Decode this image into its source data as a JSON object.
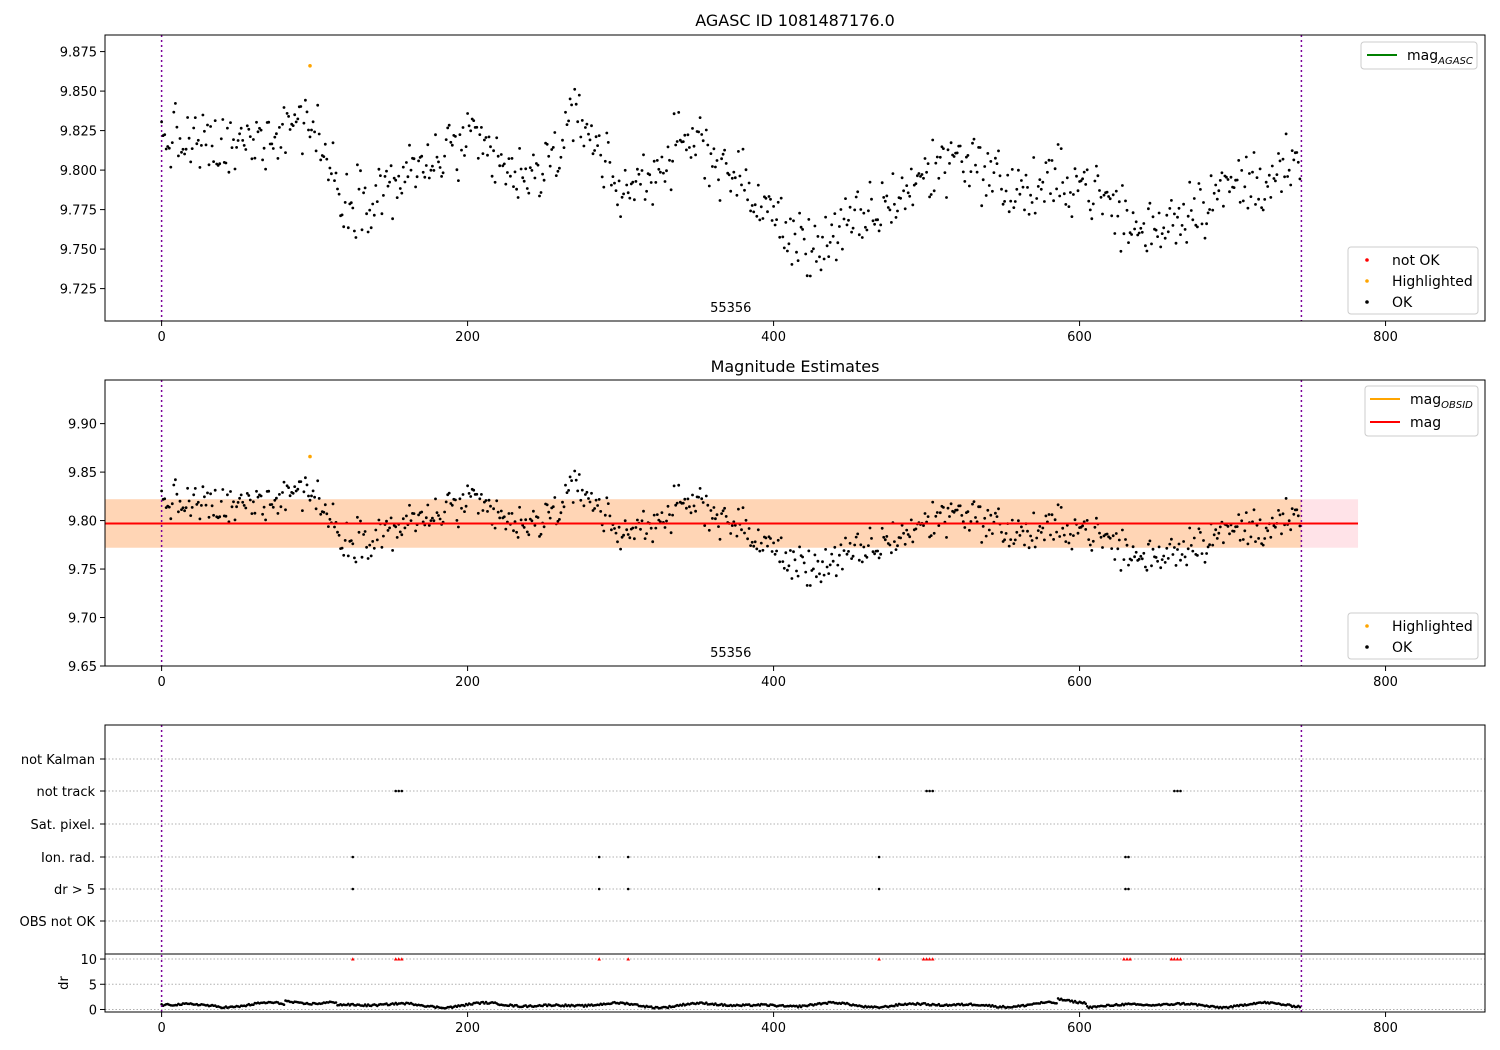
{
  "chart_data": [
    {
      "type": "scatter",
      "title": "AGASC ID 1081487176.0",
      "xlim": [
        -37,
        865
      ],
      "ylim": [
        9.7045,
        9.8855
      ],
      "xticks": [
        0,
        200,
        400,
        600,
        800
      ],
      "yticks": [
        9.725,
        9.75,
        9.775,
        9.8,
        9.825,
        9.85,
        9.875
      ],
      "ytick_labels": [
        "9.725",
        "9.750",
        "9.775",
        "9.800",
        "9.825",
        "9.850",
        "9.875"
      ],
      "obsid_boundaries": [
        0,
        745
      ],
      "annotation": {
        "text": "55356",
        "x": 372
      },
      "legend_lines": [
        {
          "label": "mag",
          "subscript": "AGASC",
          "color": "#008000"
        }
      ],
      "legend_points": [
        {
          "label": "not OK",
          "color": "#ff0000"
        },
        {
          "label": "Highlighted",
          "color": "#ffa500"
        },
        {
          "label": "OK",
          "color": "#000000"
        }
      ],
      "highlighted": [
        {
          "x": 97,
          "y": 9.866
        }
      ],
      "series_note": "OK points: ~745 samples, mean ≈ 9.797 mag, range 9.733–9.860"
    },
    {
      "type": "scatter",
      "title": "Magnitude Estimates",
      "xlim": [
        -37,
        865
      ],
      "ylim": [
        9.65,
        9.945
      ],
      "xticks": [
        0,
        200,
        400,
        600,
        800
      ],
      "yticks": [
        9.65,
        9.7,
        9.75,
        9.8,
        9.85,
        9.9
      ],
      "ytick_labels": [
        "9.65",
        "9.70",
        "9.75",
        "9.80",
        "9.85",
        "9.90"
      ],
      "obsid_boundaries": [
        0,
        745
      ],
      "annotation": {
        "text": "55356",
        "x": 372
      },
      "mag_line": {
        "y": 9.797,
        "x": [
          -37,
          782
        ],
        "color": "#ff0000"
      },
      "mag_band": {
        "y": [
          9.772,
          9.822
        ],
        "x": [
          -37,
          782
        ],
        "color": "#ffc0cb"
      },
      "obsid_band": {
        "y": [
          9.772,
          9.822
        ],
        "x": [
          -37,
          745
        ],
        "color": "#ffa500"
      },
      "legend_lines": [
        {
          "label": "mag",
          "subscript": "OBSID",
          "color": "#ffa500"
        },
        {
          "label": "mag",
          "subscript": "",
          "color": "#ff0000"
        }
      ],
      "legend_points": [
        {
          "label": "Highlighted",
          "color": "#ffa500"
        },
        {
          "label": "OK",
          "color": "#000000"
        }
      ],
      "highlighted": [
        {
          "x": 97,
          "y": 9.866
        }
      ]
    },
    {
      "type": "scatter",
      "title": "",
      "xlim": [
        -37,
        865
      ],
      "xticks": [
        0,
        200,
        400,
        600,
        800
      ],
      "obsid_boundaries": [
        0,
        745
      ],
      "flag_rows": [
        "not Kalman",
        "not track",
        "Sat. pixel.",
        "Ion. rad.",
        "dr > 5",
        "OBS not OK"
      ],
      "flag_points": {
        "not track": [
          153,
          155,
          157,
          500,
          502,
          504,
          662,
          664,
          666
        ],
        "Ion. rad.": [
          125,
          286,
          305,
          469,
          630,
          632
        ],
        "dr > 5": [
          125,
          286,
          305,
          469,
          630,
          632
        ]
      },
      "dr_panel": {
        "ylabel": "dr",
        "ylim": [
          -0.5,
          11
        ],
        "yticks": [
          0,
          5,
          10
        ],
        "ytick_labels": [
          "0",
          "5",
          "10"
        ],
        "clipped_value": 10,
        "clipped_x": [
          125,
          153,
          155,
          157,
          286,
          305,
          469,
          498,
          500,
          502,
          504,
          629,
          631,
          633,
          660,
          662,
          664,
          666
        ],
        "series_note": "dr values mostly 0.2–1.8 px"
      }
    }
  ]
}
